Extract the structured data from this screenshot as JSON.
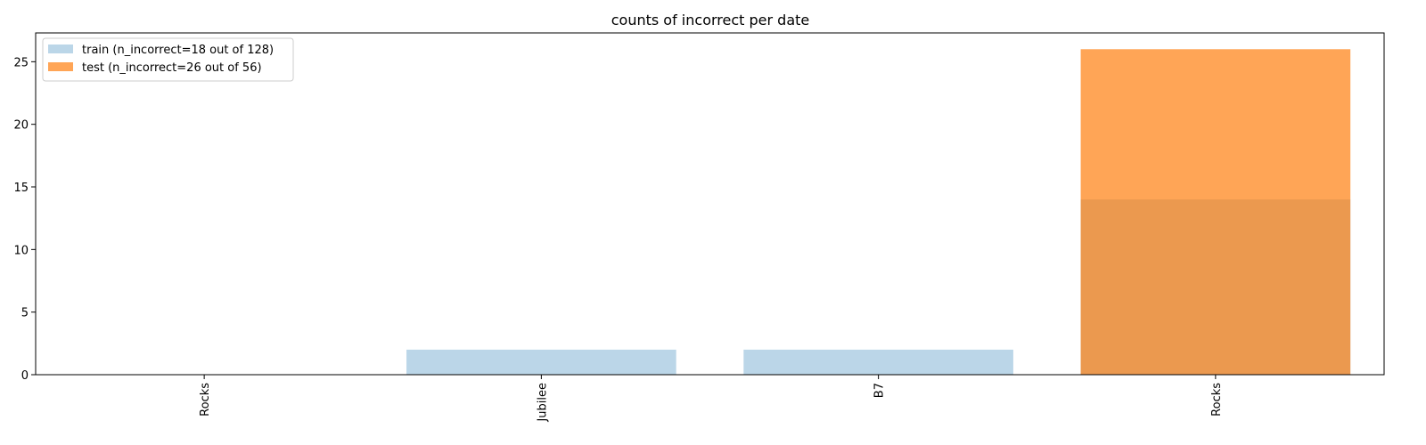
{
  "chart_data": {
    "type": "bar",
    "title": "counts of incorrect per date",
    "xlabel": "",
    "ylabel": "",
    "categories": [
      "Rocks",
      "Jubilee",
      "B7",
      "Rocks"
    ],
    "ylim": [
      0,
      27.3
    ],
    "yticks": [
      0,
      5,
      10,
      15,
      20,
      25
    ],
    "grid": false,
    "legend_position": "top-left",
    "series": [
      {
        "name": "train (n_incorrect=18 out of 128)",
        "values": [
          0,
          2,
          2,
          14
        ],
        "color": "#1f77b4",
        "opacity": 0.3
      },
      {
        "name": "test (n_incorrect=26 out of 56)",
        "values": [
          0,
          0,
          0,
          26
        ],
        "color": "#ff7f0e",
        "opacity": 0.7
      }
    ]
  }
}
